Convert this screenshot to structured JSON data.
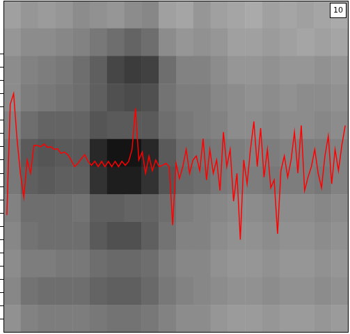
{
  "chart_data": {
    "type": "line",
    "annotations": [
      "10"
    ],
    "color": "#ff0000",
    "grid": false,
    "tick_labels": false,
    "xlim": [
      -1,
      101
    ],
    "ylim": [
      0,
      25
    ],
    "yticks": [
      1,
      2,
      3,
      4,
      5,
      6,
      7,
      8,
      9,
      10,
      11,
      12,
      13,
      14,
      15,
      16,
      17,
      18,
      19,
      20,
      21
    ],
    "x": [
      0,
      1,
      2,
      3,
      4,
      5,
      6,
      7,
      8,
      9,
      10,
      11,
      12,
      13,
      14,
      15,
      16,
      17,
      18,
      19,
      20,
      21,
      22,
      23,
      24,
      25,
      26,
      27,
      28,
      29,
      30,
      31,
      32,
      33,
      34,
      35,
      36,
      37,
      38,
      39,
      40,
      41,
      42,
      43,
      44,
      45,
      46,
      47,
      48,
      49,
      50,
      51,
      52,
      53,
      54,
      55,
      56,
      57,
      58,
      59,
      60,
      61,
      62,
      63,
      64,
      65,
      66,
      67,
      68,
      69,
      70,
      71,
      72,
      73,
      74,
      75,
      76,
      77,
      78,
      79,
      80,
      81,
      82,
      83,
      84,
      85,
      86,
      87,
      88,
      89,
      90,
      91,
      92,
      93,
      94,
      95,
      96,
      97,
      98,
      99,
      100
    ],
    "values": [
      8.85,
      17.2,
      18.0,
      14.6,
      12.0,
      10.2,
      13.0,
      12.0,
      14.1,
      14.1,
      14.0,
      14.2,
      13.95,
      14.0,
      13.8,
      13.85,
      13.5,
      13.6,
      13.4,
      13.0,
      12.5,
      12.75,
      13.1,
      13.4,
      12.9,
      12.6,
      12.9,
      12.5,
      12.9,
      12.5,
      12.9,
      12.5,
      12.9,
      12.5,
      12.9,
      12.6,
      12.9,
      13.8,
      16.9,
      13.0,
      13.6,
      12.0,
      13.3,
      12.2,
      13.0,
      12.5,
      12.6,
      12.75,
      12.5,
      8.1,
      12.75,
      11.6,
      12.5,
      13.8,
      12.0,
      13.0,
      13.3,
      12.2,
      14.6,
      11.5,
      13.8,
      12.0,
      13.0,
      10.7,
      15.1,
      12.5,
      13.8,
      9.9,
      12.0,
      7.0,
      13.0,
      11.2,
      13.8,
      15.9,
      12.5,
      15.4,
      11.7,
      13.8,
      10.9,
      11.5,
      7.45,
      12.2,
      13.3,
      11.7,
      13.0,
      15.1,
      12.0,
      15.6,
      10.7,
      11.7,
      12.5,
      13.8,
      12.0,
      10.9,
      13.3,
      14.8,
      11.2,
      13.8,
      12.2,
      14.1,
      15.6
    ],
    "heatmap": {
      "cells": [
        [
          160,
          150,
          155,
          150,
          140,
          145,
          150,
          140,
          135,
          160,
          165,
          150,
          160,
          165,
          170,
          160,
          165,
          160,
          165,
          170
        ],
        [
          150,
          140,
          140,
          135,
          130,
          120,
          110,
          100,
          110,
          140,
          150,
          145,
          150,
          160,
          160,
          155,
          160,
          165,
          160,
          165
        ],
        [
          140,
          130,
          125,
          120,
          110,
          95,
          70,
          60,
          65,
          110,
          130,
          130,
          140,
          150,
          150,
          145,
          150,
          150,
          145,
          150
        ],
        [
          140,
          125,
          120,
          115,
          110,
          95,
          80,
          75,
          80,
          115,
          125,
          125,
          135,
          140,
          145,
          140,
          145,
          140,
          140,
          145
        ],
        [
          130,
          110,
          100,
          100,
          100,
          85,
          90,
          90,
          90,
          110,
          120,
          125,
          130,
          140,
          140,
          135,
          140,
          140,
          135,
          140
        ],
        [
          120,
          90,
          85,
          90,
          90,
          40,
          20,
          20,
          40,
          90,
          110,
          115,
          120,
          125,
          130,
          125,
          130,
          125,
          125,
          130
        ],
        [
          120,
          95,
          90,
          95,
          95,
          50,
          30,
          30,
          50,
          85,
          105,
          110,
          120,
          125,
          125,
          120,
          125,
          125,
          120,
          130
        ],
        [
          130,
          110,
          110,
          110,
          115,
          95,
          95,
          100,
          100,
          110,
          125,
          130,
          135,
          140,
          140,
          135,
          140,
          140,
          135,
          140
        ],
        [
          135,
          115,
          110,
          110,
          110,
          90,
          80,
          80,
          95,
          115,
          130,
          130,
          140,
          145,
          145,
          140,
          145,
          145,
          140,
          145
        ],
        [
          140,
          125,
          125,
          120,
          120,
          110,
          105,
          105,
          110,
          125,
          135,
          135,
          145,
          150,
          150,
          145,
          150,
          150,
          145,
          150
        ],
        [
          135,
          115,
          110,
          110,
          110,
          100,
          95,
          95,
          105,
          120,
          130,
          135,
          140,
          145,
          145,
          140,
          145,
          145,
          140,
          145
        ],
        [
          145,
          130,
          125,
          125,
          125,
          120,
          115,
          115,
          120,
          130,
          140,
          140,
          150,
          155,
          155,
          150,
          155,
          155,
          150,
          155
        ]
      ]
    }
  }
}
